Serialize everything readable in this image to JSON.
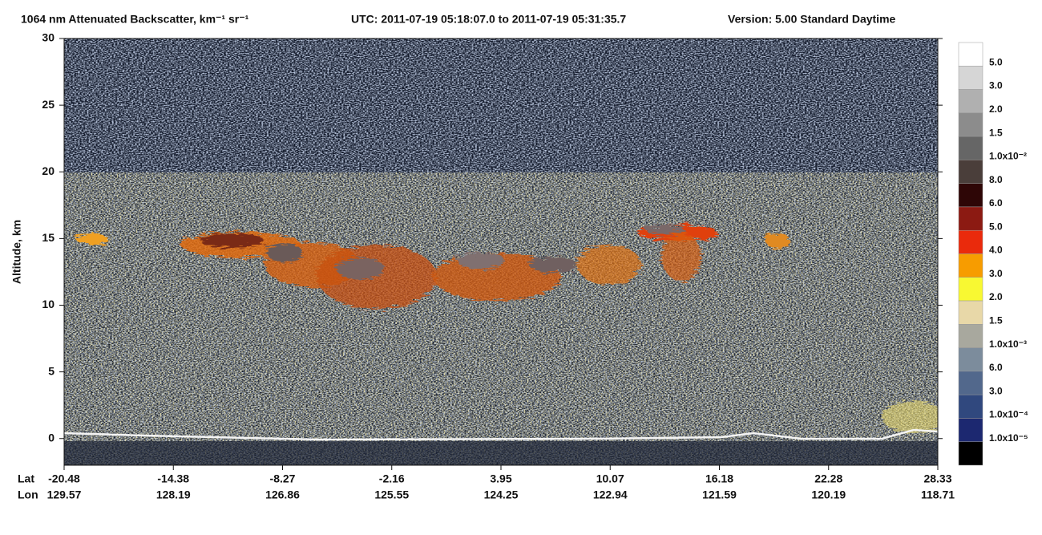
{
  "chart_data": {
    "type": "curtain",
    "title": "1064 nm Attenuated Backscatter, km⁻¹ sr⁻¹",
    "time_range": "UTC:  2011-07-19 05:18:07.0  to  2011-07-19 05:31:35.7",
    "version": "Version: 5.00  Standard  Daytime",
    "ylabel": "Altitude, km",
    "ylim": [
      -2,
      30
    ],
    "yticks": [
      0,
      5,
      10,
      15,
      20,
      25,
      30
    ],
    "x_row_labels": [
      "Lat",
      "Lon"
    ],
    "lat": [
      -20.48,
      -14.38,
      -8.27,
      -2.16,
      3.95,
      10.07,
      16.18,
      22.28,
      28.33
    ],
    "lon": [
      129.57,
      128.19,
      126.86,
      125.55,
      124.25,
      122.94,
      121.59,
      120.19,
      118.71
    ],
    "colorbar": {
      "colors": [
        "#ffffff",
        "#d6d6d6",
        "#b0b0b0",
        "#8c8c8c",
        "#666666",
        "#4a3e3a",
        "#2e0606",
        "#8c1a12",
        "#ea2a0c",
        "#f79c00",
        "#f8f832",
        "#e8d8a8",
        "#a8a89e",
        "#7c8c9c",
        "#52688c",
        "#30487e",
        "#1c2870",
        "#000000"
      ],
      "labels": [
        "5.0",
        "3.0",
        "2.0",
        "1.5",
        "1.0x10⁻²",
        "8.0",
        "6.0",
        "5.0",
        "4.0",
        "3.0",
        "2.0",
        "1.5",
        "1.0x10⁻³",
        "6.0",
        "3.0",
        "1.0x10⁻⁴",
        "1.0x10⁻⁵"
      ]
    }
  }
}
